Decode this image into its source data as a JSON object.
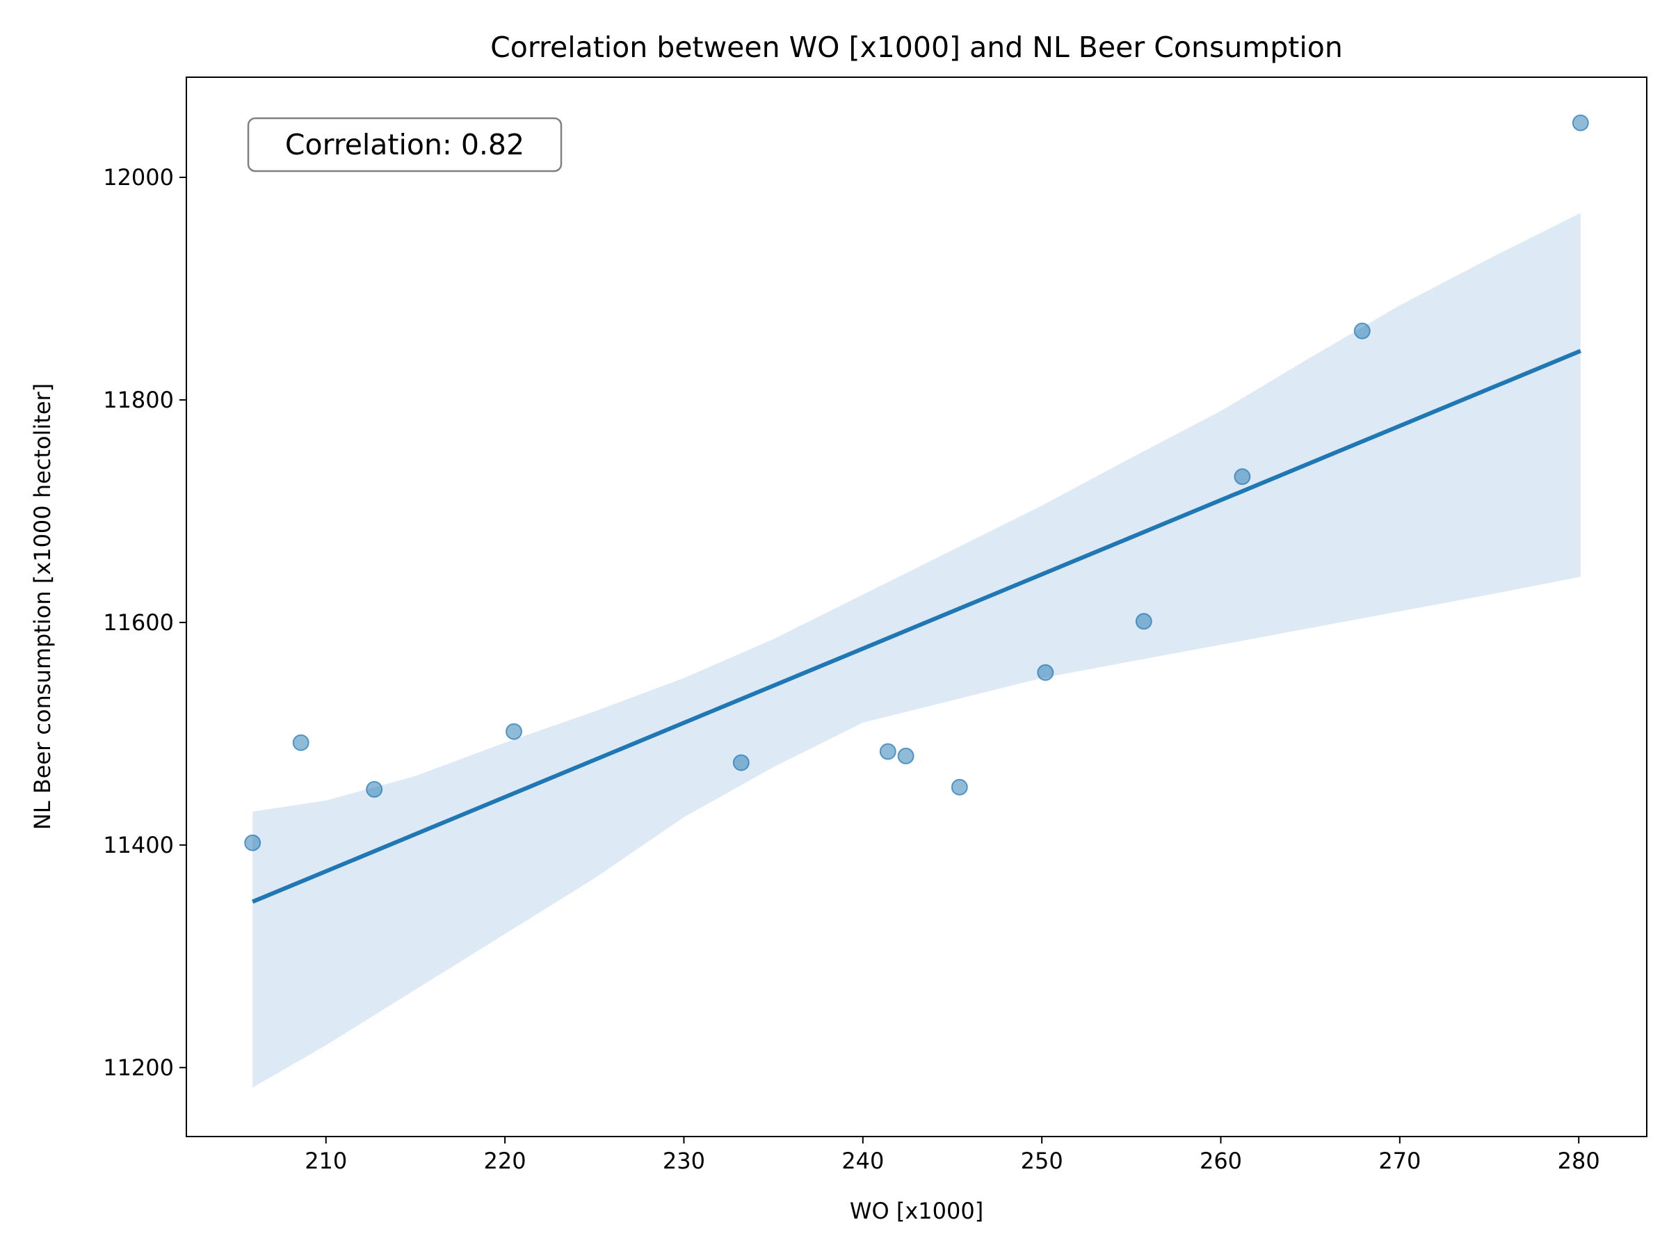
{
  "chart_data": {
    "type": "scatter",
    "title": "Correlation between WO [x1000] and NL Beer Consumption",
    "xlabel": "WO [x1000]",
    "ylabel": "NL Beer consumption [x1000 hectoliter]",
    "xlim": [
      202.2,
      283.8
    ],
    "ylim": [
      11138,
      12090
    ],
    "xticks": [
      210,
      220,
      230,
      240,
      250,
      260,
      270,
      280
    ],
    "yticks": [
      11200,
      11400,
      11600,
      11800,
      12000
    ],
    "grid": false,
    "annotation": "Correlation: 0.82",
    "points": [
      {
        "x": 205.9,
        "y": 11402
      },
      {
        "x": 208.6,
        "y": 11492
      },
      {
        "x": 212.7,
        "y": 11450
      },
      {
        "x": 220.5,
        "y": 11502
      },
      {
        "x": 233.2,
        "y": 11474
      },
      {
        "x": 241.4,
        "y": 11484
      },
      {
        "x": 242.4,
        "y": 11480
      },
      {
        "x": 245.4,
        "y": 11452
      },
      {
        "x": 250.2,
        "y": 11555
      },
      {
        "x": 255.7,
        "y": 11601
      },
      {
        "x": 261.2,
        "y": 11731
      },
      {
        "x": 267.9,
        "y": 11862
      },
      {
        "x": 280.1,
        "y": 12049
      }
    ],
    "regression": {
      "x": [
        205.9,
        280.1
      ],
      "y": [
        11349,
        11844
      ]
    },
    "confidence_band": {
      "x": [
        205.9,
        210,
        215,
        220,
        225,
        230,
        235,
        240,
        245,
        250,
        255,
        260,
        265,
        270,
        275,
        280.1
      ],
      "upper": [
        11430,
        11440,
        11462,
        11492,
        11520,
        11550,
        11585,
        11625,
        11665,
        11705,
        11748,
        11790,
        11838,
        11885,
        11927,
        11968
      ],
      "lower": [
        11182,
        11220,
        11270,
        11320,
        11370,
        11425,
        11470,
        11510,
        11530,
        11550,
        11565,
        11580,
        11595,
        11610,
        11625,
        11641
      ]
    },
    "colors": {
      "points": "#1f77b4",
      "line": "#1f77b4",
      "band": "#c6dbef"
    }
  }
}
